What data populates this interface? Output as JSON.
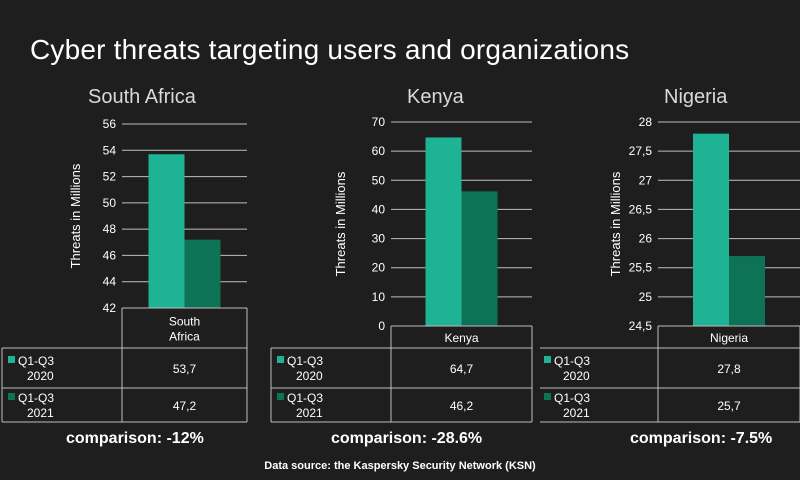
{
  "page": {
    "title": "Cyber threats targeting users and organizations",
    "source": "Data source: the Kaspersky Security Network (KSN)"
  },
  "colors": {
    "background": "#1e1e1e",
    "series_2020": "#1db394",
    "series_2021": "#0e7257",
    "grid": "#bfbfbf",
    "text": "#ffffff"
  },
  "chart_data": [
    {
      "type": "bar",
      "title": "South Africa",
      "categories": [
        "South Africa"
      ],
      "category_label_lines": [
        "South",
        "Africa"
      ],
      "ylabel": "Threats in Millions",
      "xlabel": "",
      "ylim": [
        42,
        56
      ],
      "yticks": [
        {
          "v": 42,
          "t": "42"
        },
        {
          "v": 44,
          "t": "44"
        },
        {
          "v": 46,
          "t": "46"
        },
        {
          "v": 48,
          "t": "48"
        },
        {
          "v": 50,
          "t": "50"
        },
        {
          "v": 52,
          "t": "52"
        },
        {
          "v": 54,
          "t": "54"
        },
        {
          "v": 56,
          "t": "56"
        }
      ],
      "series": [
        {
          "name": "Q1-Q3 2020",
          "legend_lines": [
            "Q1-Q3",
            "2020"
          ],
          "values": [
            53.7
          ],
          "value_label": "53,7"
        },
        {
          "name": "Q1-Q3 2021",
          "legend_lines": [
            "Q1-Q3",
            "2021"
          ],
          "values": [
            47.2
          ],
          "value_label": "47,2"
        }
      ],
      "comparison": "comparison: -12%"
    },
    {
      "type": "bar",
      "title": "Kenya",
      "categories": [
        "Kenya"
      ],
      "category_label_lines": [
        "Kenya"
      ],
      "ylabel": "Threats in Millions",
      "xlabel": "",
      "ylim": [
        0,
        70
      ],
      "yticks": [
        {
          "v": 0,
          "t": "0"
        },
        {
          "v": 10,
          "t": "10"
        },
        {
          "v": 20,
          "t": "20"
        },
        {
          "v": 30,
          "t": "30"
        },
        {
          "v": 40,
          "t": "40"
        },
        {
          "v": 50,
          "t": "50"
        },
        {
          "v": 60,
          "t": "60"
        },
        {
          "v": 70,
          "t": "70"
        }
      ],
      "series": [
        {
          "name": "Q1-Q3 2020",
          "legend_lines": [
            "Q1-Q3",
            "2020"
          ],
          "values": [
            64.7
          ],
          "value_label": "64,7"
        },
        {
          "name": "Q1-Q3 2021",
          "legend_lines": [
            "Q1-Q3",
            "2021"
          ],
          "values": [
            46.2
          ],
          "value_label": "46,2"
        }
      ],
      "comparison": "comparison: -28.6%"
    },
    {
      "type": "bar",
      "title": "Nigeria",
      "categories": [
        "Nigeria"
      ],
      "category_label_lines": [
        "Nigeria"
      ],
      "ylabel": "Threats in Millions",
      "xlabel": "",
      "ylim": [
        24.5,
        28
      ],
      "yticks": [
        {
          "v": 24.5,
          "t": "24,5"
        },
        {
          "v": 25,
          "t": "25"
        },
        {
          "v": 25.5,
          "t": "25,5"
        },
        {
          "v": 26,
          "t": "26"
        },
        {
          "v": 26.5,
          "t": "26,5"
        },
        {
          "v": 27,
          "t": "27"
        },
        {
          "v": 27.5,
          "t": "27,5"
        },
        {
          "v": 28,
          "t": "28"
        }
      ],
      "series": [
        {
          "name": "Q1-Q3 2020",
          "legend_lines": [
            "Q1-Q3",
            "2020"
          ],
          "values": [
            27.8
          ],
          "value_label": "27,8"
        },
        {
          "name": "Q1-Q3 2021",
          "legend_lines": [
            "Q1-Q3",
            "2021"
          ],
          "values": [
            25.7
          ],
          "value_label": "25,7"
        }
      ],
      "comparison": "comparison: -7.5%"
    }
  ]
}
